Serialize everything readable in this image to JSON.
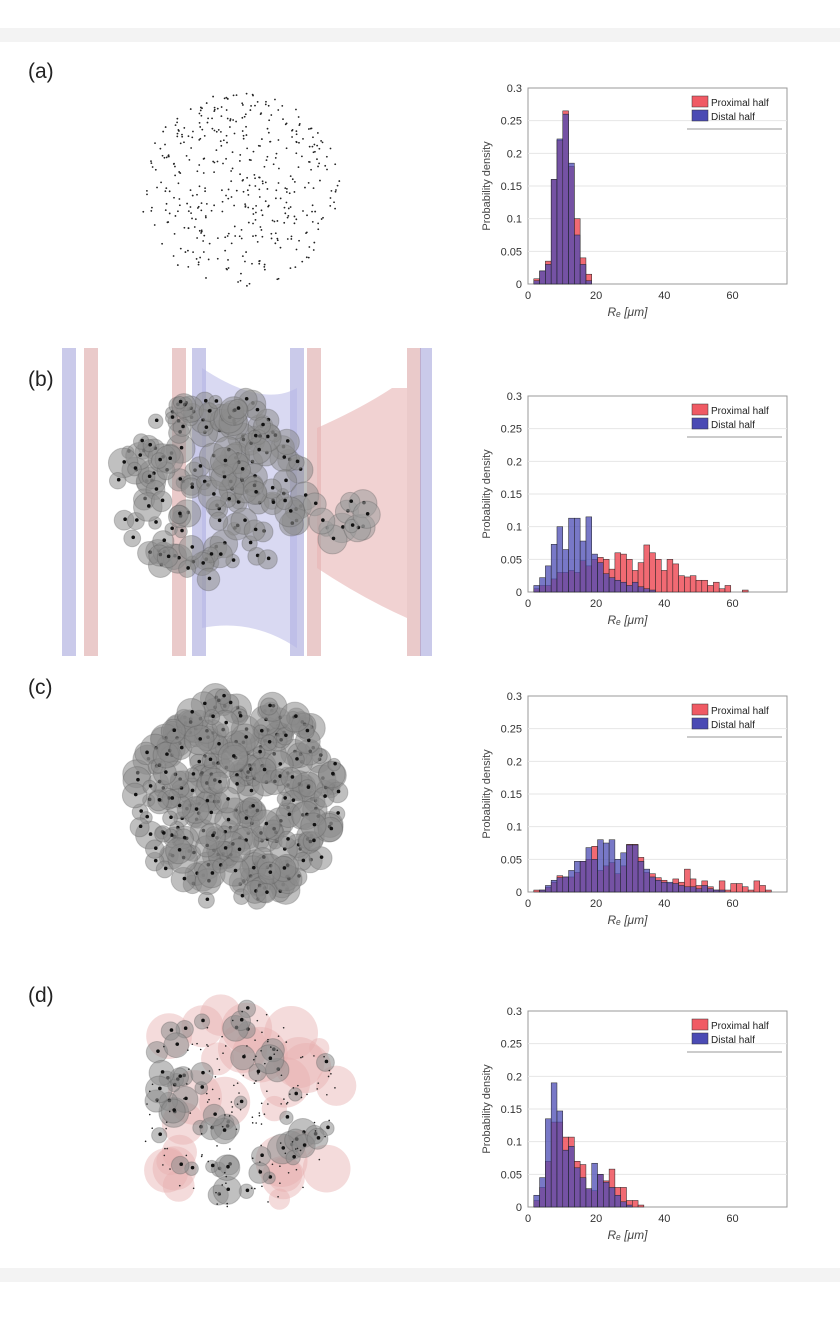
{
  "panel_labels": [
    "(a)",
    "(b)",
    "(c)",
    "(d)"
  ],
  "colors": {
    "proximal": "#f05a64",
    "distal": "#4b4bb4",
    "overlap": "#5a3a9a"
  },
  "chart_data": [
    {
      "type": "bar",
      "panel": "(a)",
      "title": "",
      "xlabel": "Rₑ [μm]",
      "ylabel": "Probability density",
      "xlim": [
        0,
        76
      ],
      "ylim": [
        0,
        0.3
      ],
      "xticks": [
        "0",
        "20",
        "40",
        "60"
      ],
      "yticks": [
        "0",
        "0.05",
        "0.1",
        "0.15",
        "0.2",
        "0.25",
        "0.3"
      ],
      "xtick_values": [
        0,
        20,
        40,
        60
      ],
      "ytick_values": [
        0,
        0.05,
        0.1,
        0.15,
        0.2,
        0.25,
        0.3
      ],
      "grid": true,
      "legend_position": "top-right",
      "bin_start": 1.7,
      "bin_width": 1.7,
      "series": [
        {
          "name": "Proximal half",
          "values": [
            0.008,
            0.02,
            0.035,
            0.16,
            0.22,
            0.265,
            0.18,
            0.1,
            0.04,
            0.015
          ]
        },
        {
          "name": "Distal half",
          "values": [
            0.005,
            0.02,
            0.03,
            0.16,
            0.222,
            0.26,
            0.185,
            0.075,
            0.03,
            0.005
          ]
        }
      ]
    },
    {
      "type": "bar",
      "panel": "(b)",
      "title": "",
      "xlabel": "Rₑ [μm]",
      "ylabel": "Probability density",
      "xlim": [
        0,
        76
      ],
      "ylim": [
        0,
        0.3
      ],
      "xticks": [
        "0",
        "20",
        "40",
        "60"
      ],
      "yticks": [
        "0",
        "0.05",
        "0.1",
        "0.15",
        "0.2",
        "0.25",
        "0.3"
      ],
      "xtick_values": [
        0,
        20,
        40,
        60
      ],
      "ytick_values": [
        0,
        0.05,
        0.1,
        0.15,
        0.2,
        0.25,
        0.3
      ],
      "grid": true,
      "legend_position": "top-right",
      "bin_start": 1.7,
      "bin_width": 1.7,
      "series": [
        {
          "name": "Proximal half",
          "values": [
            0.005,
            0.01,
            0.01,
            0.02,
            0.03,
            0.03,
            0.033,
            0.03,
            0.048,
            0.04,
            0.05,
            0.053,
            0.05,
            0.035,
            0.06,
            0.058,
            0.05,
            0.033,
            0.045,
            0.072,
            0.06,
            0.05,
            0.033,
            0.05,
            0.043,
            0.025,
            0.023,
            0.025,
            0.018,
            0.018,
            0.01,
            0.015,
            0.005,
            0.01,
            0,
            0,
            0.003
          ]
        },
        {
          "name": "Distal half",
          "values": [
            0.01,
            0.022,
            0.04,
            0.073,
            0.1,
            0.065,
            0.113,
            0.113,
            0.078,
            0.115,
            0.058,
            0.045,
            0.028,
            0.022,
            0.018,
            0.015,
            0.01,
            0.015,
            0.008,
            0.005,
            0.003,
            0,
            0,
            0,
            0,
            0,
            0,
            0,
            0,
            0,
            0,
            0,
            0,
            0,
            0,
            0,
            0
          ]
        }
      ]
    },
    {
      "type": "bar",
      "panel": "(c)",
      "title": "",
      "xlabel": "Rₑ [μm]",
      "ylabel": "Probability density",
      "xlim": [
        0,
        76
      ],
      "ylim": [
        0,
        0.3
      ],
      "xticks": [
        "0",
        "20",
        "40",
        "60"
      ],
      "yticks": [
        "0",
        "0.05",
        "0.1",
        "0.15",
        "0.2",
        "0.25",
        "0.3"
      ],
      "xtick_values": [
        0,
        20,
        40,
        60
      ],
      "ytick_values": [
        0,
        0.05,
        0.1,
        0.15,
        0.2,
        0.25,
        0.3
      ],
      "grid": true,
      "legend_position": "top-right",
      "bin_start": 1.7,
      "bin_width": 1.7,
      "series": [
        {
          "name": "Proximal half",
          "values": [
            0.003,
            0.003,
            0.007,
            0.015,
            0.025,
            0.023,
            0.023,
            0.03,
            0.047,
            0.05,
            0.07,
            0.033,
            0.04,
            0.045,
            0.028,
            0.04,
            0.073,
            0.073,
            0.053,
            0.03,
            0.028,
            0.022,
            0.018,
            0.013,
            0.02,
            0.015,
            0.035,
            0.02,
            0.01,
            0.017,
            0.008,
            0.003,
            0.017,
            0.003,
            0.013,
            0.013,
            0.008,
            0.003,
            0.017,
            0.01,
            0.003
          ]
        },
        {
          "name": "Distal half",
          "values": [
            0,
            0.003,
            0.01,
            0.018,
            0.022,
            0.023,
            0.033,
            0.047,
            0.047,
            0.068,
            0.05,
            0.08,
            0.075,
            0.08,
            0.05,
            0.06,
            0.072,
            0.072,
            0.047,
            0.035,
            0.023,
            0.018,
            0.015,
            0.015,
            0.013,
            0.01,
            0.008,
            0.008,
            0.005,
            0.01,
            0.005,
            0.003,
            0.003,
            0,
            0,
            0,
            0,
            0,
            0,
            0,
            0
          ]
        }
      ]
    },
    {
      "type": "bar",
      "panel": "(d)",
      "title": "",
      "xlabel": "Rₑ [μm]",
      "ylabel": "Probability density",
      "xlim": [
        0,
        76
      ],
      "ylim": [
        0,
        0.3
      ],
      "xticks": [
        "0",
        "20",
        "40",
        "60"
      ],
      "yticks": [
        "0",
        "0.05",
        "0.1",
        "0.15",
        "0.2",
        "0.25",
        "0.3"
      ],
      "xtick_values": [
        0,
        20,
        40,
        60
      ],
      "ytick_values": [
        0,
        0.05,
        0.1,
        0.15,
        0.2,
        0.25,
        0.3
      ],
      "grid": true,
      "legend_position": "top-right",
      "bin_start": 1.7,
      "bin_width": 1.7,
      "series": [
        {
          "name": "Proximal half",
          "values": [
            0.01,
            0.03,
            0.07,
            0.13,
            0.13,
            0.107,
            0.107,
            0.07,
            0.065,
            0.028,
            0.025,
            0.05,
            0.04,
            0.058,
            0.03,
            0.03,
            0.01,
            0.01,
            0.003
          ]
        },
        {
          "name": "Distal half",
          "values": [
            0.018,
            0.045,
            0.135,
            0.19,
            0.147,
            0.087,
            0.093,
            0.06,
            0.045,
            0.028,
            0.067,
            0.05,
            0.038,
            0.03,
            0.018,
            0.008,
            0.003,
            0,
            0
          ]
        }
      ]
    }
  ]
}
